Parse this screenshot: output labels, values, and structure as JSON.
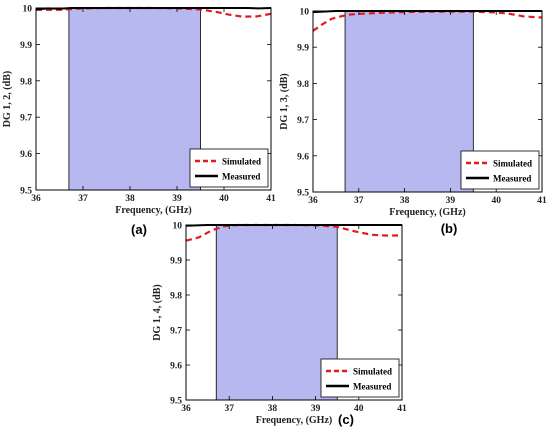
{
  "chart_data": [
    {
      "type": "line",
      "panel_label": "(a)",
      "xlabel": "Frequency, (GHz)",
      "ylabel": "DG 1, 2, (dB)",
      "xlim": [
        36,
        41
      ],
      "ylim": [
        9.5,
        10
      ],
      "xticks": [
        "36",
        "37",
        "38",
        "39",
        "40",
        "41"
      ],
      "yticks": [
        "9.5",
        "9.6",
        "9.7",
        "9.8",
        "9.9",
        "10"
      ],
      "grid": false,
      "legend_position": "bottom-right",
      "shaded_band": [
        36.7,
        39.5
      ],
      "series": [
        {
          "name": "Simulated",
          "color": "#e41a1c",
          "dash": "dashed",
          "x": [
            36,
            36.5,
            37,
            37.5,
            38,
            38.5,
            39,
            39.5,
            39.8,
            40.1,
            40.4,
            40.7,
            41
          ],
          "y": [
            9.995,
            9.995,
            9.999,
            10.0,
            10.0,
            10.0,
            9.999,
            9.996,
            9.99,
            9.982,
            9.976,
            9.977,
            9.984
          ]
        },
        {
          "name": "Measured",
          "color": "#000000",
          "dash": "solid",
          "x": [
            36,
            36.25,
            36.5,
            36.75,
            37,
            37.5,
            38,
            38.5,
            39,
            39.5,
            39.75,
            40,
            40.25,
            40.5,
            40.75,
            41
          ],
          "y": [
            9.996,
            9.999,
            9.998,
            10.0,
            10.0,
            10.0,
            10.0,
            10.0,
            10.0,
            10.0,
            10.0,
            10.0,
            10.0,
            10.0,
            9.999,
            10.0
          ]
        }
      ]
    },
    {
      "type": "line",
      "panel_label": "(b)",
      "xlabel": "Frequency, (GHz)",
      "ylabel": "DG 1, 3, (dB)",
      "xlim": [
        36,
        41
      ],
      "ylim": [
        9.5,
        10
      ],
      "xticks": [
        "36",
        "37",
        "38",
        "39",
        "40",
        "41"
      ],
      "yticks": [
        "9.5",
        "9.6",
        "9.7",
        "9.8",
        "9.9",
        "10"
      ],
      "grid": false,
      "legend_position": "bottom-right",
      "shaded_band": [
        36.7,
        39.5
      ],
      "series": [
        {
          "name": "Simulated",
          "color": "#e41a1c",
          "dash": "dashed",
          "x": [
            36,
            36.2,
            36.4,
            36.6,
            36.8,
            37,
            37.5,
            38,
            38.5,
            39,
            39.5,
            40,
            40.3,
            40.6,
            41
          ],
          "y": [
            9.945,
            9.963,
            9.978,
            9.985,
            9.99,
            9.992,
            9.995,
            9.997,
            9.998,
            9.998,
            9.998,
            9.996,
            9.992,
            9.985,
            9.982
          ]
        },
        {
          "name": "Measured",
          "color": "#000000",
          "dash": "solid",
          "x": [
            36,
            36.5,
            37,
            37.5,
            38,
            38.5,
            39,
            39.5,
            40,
            40.5,
            41
          ],
          "y": [
            9.997,
            10.0,
            10.0,
            10.0,
            10.0,
            10.0,
            10.0,
            10.0,
            10.0,
            10.0,
            10.0
          ]
        }
      ]
    },
    {
      "type": "line",
      "panel_label": "(c)",
      "xlabel": "Frequency, (GHz)",
      "ylabel": "DG 1, 4, (dB)",
      "xlim": [
        36,
        41
      ],
      "ylim": [
        9.5,
        10
      ],
      "xticks": [
        "36",
        "37",
        "38",
        "39",
        "40",
        "41"
      ],
      "yticks": [
        "9.5",
        "9.6",
        "9.7",
        "9.8",
        "9.9",
        "10"
      ],
      "grid": false,
      "legend_position": "bottom-right",
      "shaded_band": [
        36.7,
        39.5
      ],
      "series": [
        {
          "name": "Simulated",
          "color": "#e41a1c",
          "dash": "dashed",
          "x": [
            36,
            36.3,
            36.6,
            36.9,
            37.2,
            37.5,
            38,
            38.5,
            39,
            39.5,
            39.9,
            40.3,
            40.6,
            41
          ],
          "y": [
            9.955,
            9.965,
            9.985,
            9.997,
            10.0,
            10.0,
            10.0,
            10.0,
            9.999,
            9.995,
            9.982,
            9.972,
            9.97,
            9.97
          ]
        },
        {
          "name": "Measured",
          "color": "#000000",
          "dash": "solid",
          "x": [
            36,
            36.5,
            37,
            37.5,
            38,
            38.5,
            39,
            39.5,
            40,
            40.5,
            41
          ],
          "y": [
            9.998,
            10.0,
            10.0,
            10.0,
            10.0,
            10.0,
            10.0,
            10.0,
            10.0,
            10.0,
            10.0
          ]
        }
      ]
    }
  ]
}
